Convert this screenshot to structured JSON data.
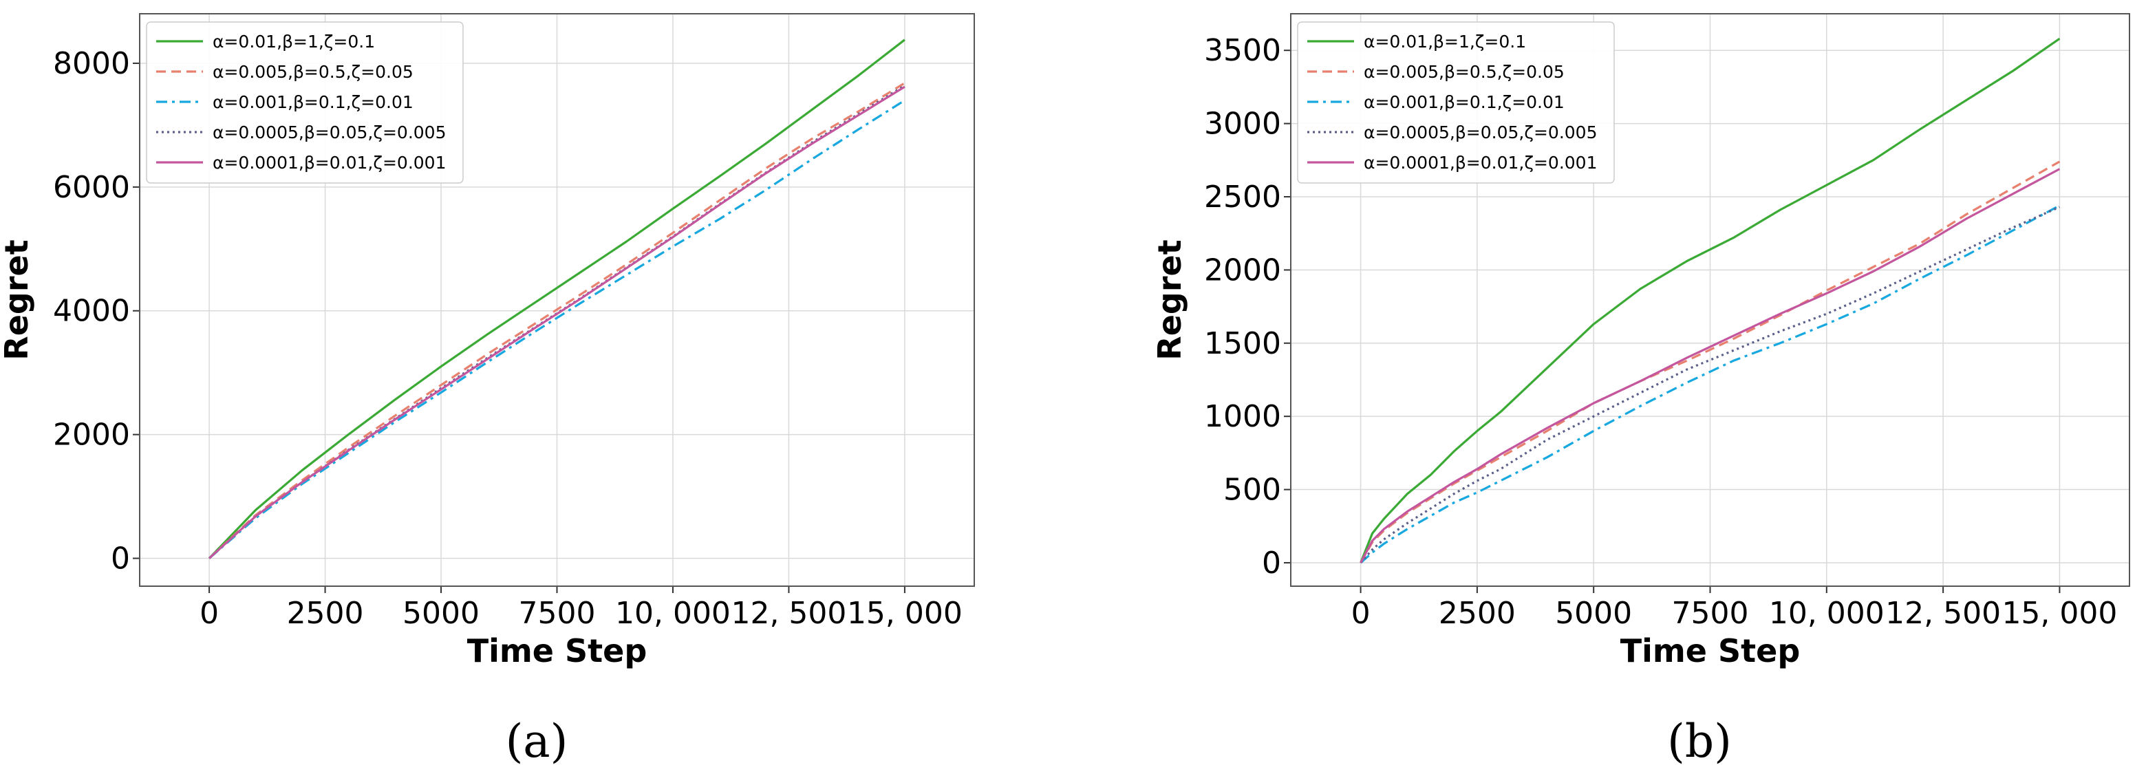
{
  "chart_data": [
    {
      "type": "line",
      "caption": "(a)",
      "xlabel": "Time Step",
      "ylabel": "Regret",
      "xlim": [
        -1500,
        16500
      ],
      "ylim": [
        -450,
        8800
      ],
      "xticks": [
        0,
        2500,
        5000,
        7500,
        10000,
        12500,
        15000
      ],
      "xtick_labels": [
        "0",
        "2500",
        "5000",
        "7500",
        "10, 000",
        "12, 500",
        "15, 000"
      ],
      "yticks": [
        0,
        2000,
        4000,
        6000,
        8000
      ],
      "ytick_labels": [
        "0",
        "2000",
        "4000",
        "6000",
        "8000"
      ],
      "grid": true,
      "legend_position": "upper-left",
      "x": [
        0,
        1000,
        2000,
        3000,
        4000,
        5000,
        6000,
        7000,
        8000,
        9000,
        10000,
        11000,
        12000,
        13000,
        14000,
        15000
      ],
      "series": [
        {
          "name": "α=0.01,β=1,ζ=0.1",
          "color": "#3aaa35",
          "dash": "solid",
          "values": [
            0,
            780,
            1420,
            2000,
            2560,
            3100,
            3620,
            4120,
            4620,
            5120,
            5650,
            6170,
            6700,
            7250,
            7800,
            8380
          ]
        },
        {
          "name": "α=0.005,β=0.5,ζ=0.05",
          "color": "#e8806e",
          "dash": "dashed",
          "values": [
            0,
            700,
            1260,
            1790,
            2300,
            2800,
            3300,
            3780,
            4260,
            4750,
            5260,
            5780,
            6300,
            6780,
            7220,
            7680
          ]
        },
        {
          "name": "α=0.001,β=0.1,ζ=0.01",
          "color": "#17a8df",
          "dash": "dashdot",
          "values": [
            0,
            650,
            1200,
            1700,
            2200,
            2680,
            3170,
            3650,
            4120,
            4580,
            5040,
            5480,
            5950,
            6450,
            6930,
            7400
          ]
        },
        {
          "name": "α=0.0005,β=0.05,ζ=0.005",
          "color": "#5b5f8a",
          "dash": "dotted",
          "values": [
            0,
            680,
            1230,
            1750,
            2250,
            2750,
            3240,
            3720,
            4200,
            4700,
            5200,
            5720,
            6230,
            6720,
            7180,
            7640
          ]
        },
        {
          "name": "α=0.0001,β=0.01,ζ=0.001",
          "color": "#c4569e",
          "dash": "solid",
          "values": [
            0,
            680,
            1230,
            1740,
            2240,
            2730,
            3220,
            3710,
            4190,
            4690,
            5190,
            5710,
            6220,
            6700,
            7160,
            7620
          ]
        }
      ]
    },
    {
      "type": "line",
      "caption": "(b)",
      "xlabel": "Time Step",
      "ylabel": "Regret",
      "xlim": [
        -1500,
        16500
      ],
      "ylim": [
        -160,
        3750
      ],
      "xticks": [
        0,
        2500,
        5000,
        7500,
        10000,
        12500,
        15000
      ],
      "xtick_labels": [
        "0",
        "2500",
        "5000",
        "7500",
        "10, 000",
        "12, 500",
        "15, 000"
      ],
      "yticks": [
        0,
        500,
        1000,
        1500,
        2000,
        2500,
        3000,
        3500
      ],
      "ytick_labels": [
        "0",
        "500",
        "1000",
        "1500",
        "2000",
        "2500",
        "3000",
        "3500"
      ],
      "grid": true,
      "legend_position": "upper-left",
      "x": [
        0,
        250,
        500,
        1000,
        1500,
        2000,
        2500,
        3000,
        4000,
        5000,
        6000,
        7000,
        8000,
        9000,
        10000,
        11000,
        12000,
        13000,
        14000,
        15000
      ],
      "series": [
        {
          "name": "α=0.01,β=1,ζ=0.1",
          "color": "#3aaa35",
          "dash": "solid",
          "values": [
            0,
            200,
            300,
            470,
            600,
            760,
            900,
            1030,
            1330,
            1630,
            1870,
            2060,
            2220,
            2410,
            2580,
            2750,
            2960,
            3160,
            3360,
            3580
          ]
        },
        {
          "name": "α=0.005,β=0.5,ζ=0.05",
          "color": "#e8806e",
          "dash": "dashed",
          "values": [
            0,
            140,
            220,
            340,
            440,
            540,
            630,
            720,
            900,
            1090,
            1240,
            1380,
            1530,
            1690,
            1860,
            2020,
            2180,
            2380,
            2560,
            2740
          ]
        },
        {
          "name": "α=0.001,β=0.1,ζ=0.01",
          "color": "#17a8df",
          "dash": "dashdot",
          "values": [
            0,
            70,
            130,
            230,
            320,
            410,
            480,
            560,
            720,
            900,
            1070,
            1230,
            1380,
            1500,
            1630,
            1770,
            1940,
            2100,
            2270,
            2440
          ]
        },
        {
          "name": "α=0.0005,β=0.05,ζ=0.005",
          "color": "#5b5f8a",
          "dash": "dotted",
          "values": [
            0,
            90,
            160,
            270,
            370,
            470,
            560,
            640,
            840,
            1000,
            1160,
            1320,
            1450,
            1580,
            1700,
            1840,
            1990,
            2140,
            2290,
            2430
          ]
        },
        {
          "name": "α=0.0001,β=0.01,ζ=0.001",
          "color": "#c4569e",
          "dash": "solid",
          "values": [
            0,
            150,
            230,
            350,
            450,
            550,
            640,
            740,
            920,
            1090,
            1240,
            1400,
            1550,
            1700,
            1840,
            1990,
            2160,
            2350,
            2520,
            2690
          ]
        }
      ]
    }
  ]
}
